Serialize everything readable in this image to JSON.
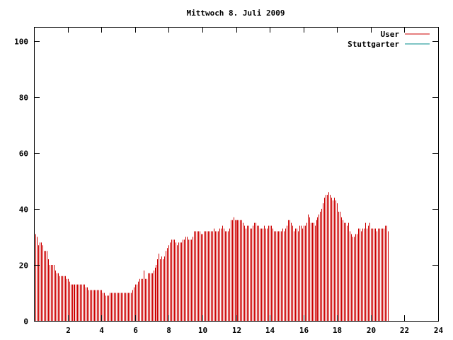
{
  "chart_data": {
    "type": "bar",
    "title": "Mittwoch 8. Juli 2009",
    "xlabel": "",
    "ylabel": "",
    "xlim": [
      0,
      24
    ],
    "ylim": [
      0,
      105
    ],
    "x_ticks": [
      2,
      4,
      6,
      8,
      10,
      12,
      14,
      16,
      18,
      20,
      22,
      24
    ],
    "y_ticks": [
      0,
      20,
      40,
      60,
      80,
      100
    ],
    "grid": false,
    "legend_position": "top-right",
    "bar_interval_minutes": 5,
    "series": [
      {
        "name": "User",
        "color": "#cc0000",
        "values": [
          32,
          31,
          30,
          27,
          28,
          28,
          27,
          25,
          25,
          25,
          22,
          20,
          20,
          20,
          20,
          18,
          17,
          17,
          16,
          16,
          16,
          16,
          16,
          15,
          15,
          14,
          13,
          13,
          13,
          13,
          13,
          13,
          13,
          13,
          13,
          13,
          13,
          12,
          12,
          11,
          11,
          11,
          11,
          11,
          11,
          11,
          11,
          11,
          11,
          10,
          10,
          9,
          9,
          9,
          10,
          10,
          10,
          10,
          10,
          10,
          10,
          10,
          10,
          10,
          10,
          10,
          10,
          10,
          10,
          10,
          11,
          12,
          13,
          13,
          14,
          15,
          15,
          15,
          18,
          15,
          15,
          17,
          17,
          17,
          17,
          18,
          19,
          20,
          22,
          24,
          22,
          23,
          22,
          23,
          25,
          26,
          27,
          28,
          29,
          29,
          29,
          28,
          27,
          28,
          28,
          28,
          29,
          29,
          30,
          30,
          29,
          29,
          29,
          30,
          32,
          32,
          32,
          32,
          32,
          31,
          31,
          32,
          32,
          32,
          32,
          32,
          32,
          32,
          33,
          32,
          32,
          32,
          33,
          33,
          34,
          33,
          32,
          32,
          32,
          33,
          36,
          36,
          37,
          36,
          36,
          36,
          36,
          36,
          36,
          35,
          34,
          33,
          34,
          34,
          33,
          33,
          34,
          35,
          35,
          34,
          34,
          33,
          33,
          33,
          34,
          33,
          33,
          34,
          34,
          34,
          33,
          32,
          32,
          32,
          32,
          32,
          32,
          33,
          32,
          33,
          34,
          36,
          36,
          35,
          34,
          32,
          33,
          33,
          32,
          34,
          34,
          33,
          34,
          34,
          35,
          38,
          37,
          35,
          35,
          35,
          34,
          36,
          37,
          38,
          39,
          40,
          42,
          44,
          45,
          45,
          46,
          45,
          44,
          43,
          44,
          43,
          42,
          39,
          39,
          37,
          36,
          35,
          35,
          34,
          35,
          32,
          31,
          30,
          30,
          31,
          31,
          33,
          33,
          32,
          33,
          33,
          35,
          33,
          34,
          35,
          33,
          33,
          33,
          33,
          32,
          33,
          33,
          33,
          33,
          33,
          34,
          34,
          32
        ]
      },
      {
        "name": "Stuttgarter",
        "color": "#008b8b",
        "values": []
      }
    ]
  }
}
